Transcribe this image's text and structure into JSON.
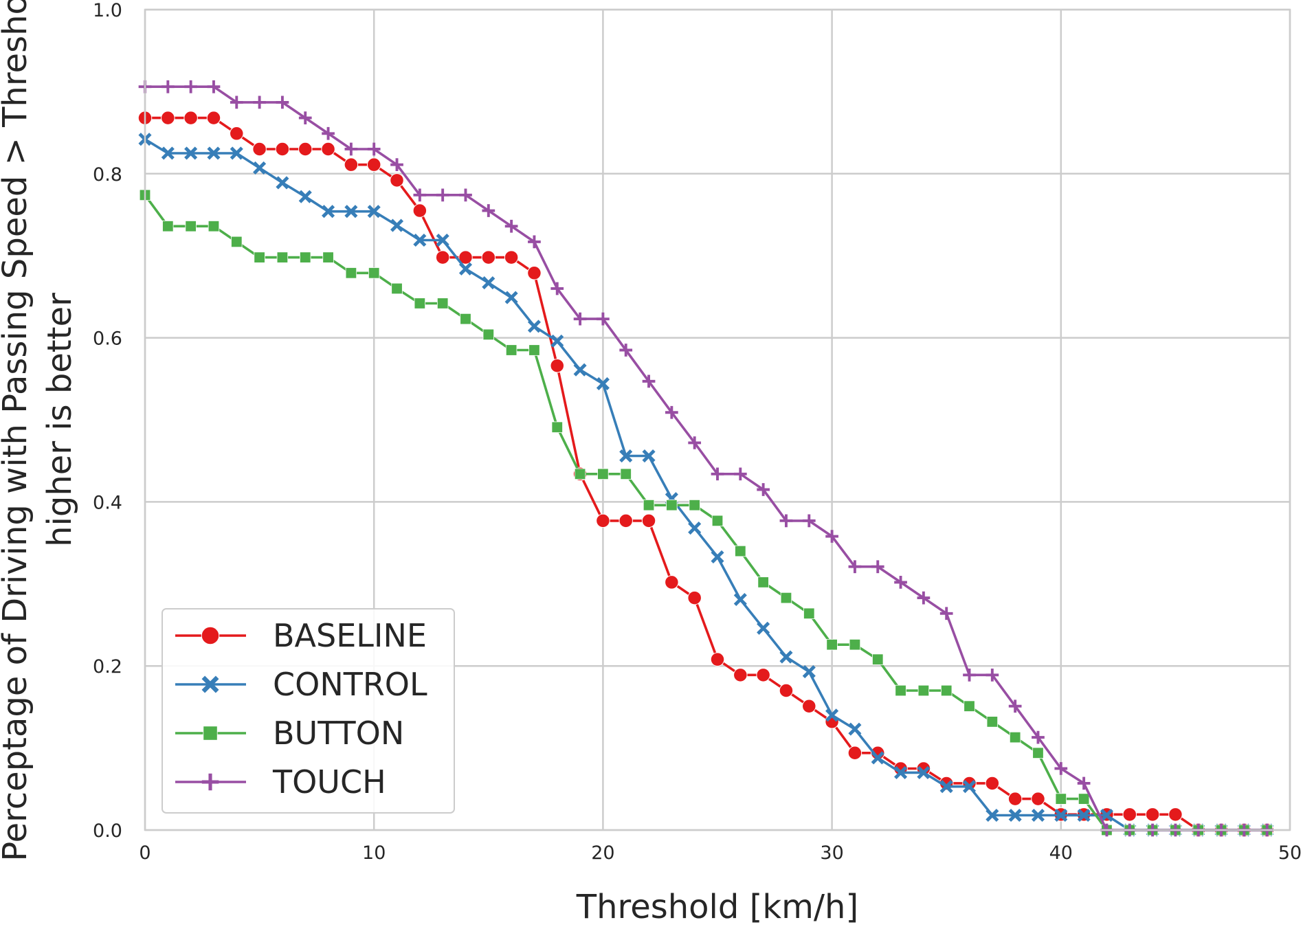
{
  "chart_data": {
    "type": "line",
    "title": "",
    "xlabel": "Threshold [km/h]",
    "ylabel": [
      "Perceptage of Driving with Passing Speed > Threshold",
      "higher is better"
    ],
    "xlim": [
      0,
      50
    ],
    "ylim": [
      0,
      1.0
    ],
    "x_ticks": [
      0,
      10,
      20,
      30,
      40,
      50
    ],
    "y_ticks": [
      0.0,
      0.2,
      0.4,
      0.6,
      0.8,
      1.0
    ],
    "x_tick_labels": [
      "0",
      "10",
      "20",
      "30",
      "40",
      "50"
    ],
    "y_tick_labels": [
      "0.0",
      "0.2",
      "0.4",
      "0.6",
      "0.8",
      "1.0"
    ],
    "grid": true,
    "legend_position": "lower-left",
    "series": [
      {
        "name": "BASELINE",
        "color": "#e41a1c",
        "marker": "circle",
        "x": [
          0,
          1,
          2,
          3,
          4,
          5,
          6,
          7,
          8,
          9,
          10,
          11,
          12,
          13,
          14,
          15,
          16,
          17,
          18,
          19,
          20,
          21,
          22,
          23,
          24,
          25,
          26,
          27,
          28,
          29,
          30,
          31,
          32,
          33,
          34,
          35,
          36,
          37,
          38,
          39,
          40,
          41,
          42,
          43,
          44,
          45,
          46,
          47,
          48,
          49
        ],
        "values": [
          0.868,
          0.868,
          0.868,
          0.868,
          0.849,
          0.83,
          0.83,
          0.83,
          0.83,
          0.811,
          0.811,
          0.792,
          0.755,
          0.698,
          0.698,
          0.698,
          0.698,
          0.679,
          0.566,
          0.434,
          0.377,
          0.377,
          0.377,
          0.302,
          0.283,
          0.208,
          0.189,
          0.189,
          0.17,
          0.151,
          0.132,
          0.094,
          0.094,
          0.075,
          0.075,
          0.057,
          0.057,
          0.057,
          0.038,
          0.038,
          0.019,
          0.019,
          0.019,
          0.019,
          0.019,
          0.019,
          0.0,
          0.0,
          0.0,
          0.0
        ]
      },
      {
        "name": "CONTROL",
        "color": "#377eb8",
        "marker": "x",
        "x": [
          0,
          1,
          2,
          3,
          4,
          5,
          6,
          7,
          8,
          9,
          10,
          11,
          12,
          13,
          14,
          15,
          16,
          17,
          18,
          19,
          20,
          21,
          22,
          23,
          24,
          25,
          26,
          27,
          28,
          29,
          30,
          31,
          32,
          33,
          34,
          35,
          36,
          37,
          38,
          39,
          40,
          41,
          42,
          43,
          44,
          45,
          46,
          47,
          48,
          49
        ],
        "values": [
          0.842,
          0.825,
          0.825,
          0.825,
          0.825,
          0.807,
          0.789,
          0.772,
          0.754,
          0.754,
          0.754,
          0.737,
          0.719,
          0.719,
          0.684,
          0.667,
          0.649,
          0.614,
          0.596,
          0.561,
          0.544,
          0.456,
          0.456,
          0.404,
          0.368,
          0.333,
          0.281,
          0.246,
          0.211,
          0.193,
          0.14,
          0.123,
          0.088,
          0.07,
          0.07,
          0.053,
          0.053,
          0.018,
          0.018,
          0.018,
          0.018,
          0.018,
          0.018,
          0.0,
          0.0,
          0.0,
          0.0,
          0.0,
          0.0,
          0.0
        ]
      },
      {
        "name": "BUTTON",
        "color": "#4daf4a",
        "marker": "square",
        "x": [
          0,
          1,
          2,
          3,
          4,
          5,
          6,
          7,
          8,
          9,
          10,
          11,
          12,
          13,
          14,
          15,
          16,
          17,
          18,
          19,
          20,
          21,
          22,
          23,
          24,
          25,
          26,
          27,
          28,
          29,
          30,
          31,
          32,
          33,
          34,
          35,
          36,
          37,
          38,
          39,
          40,
          41,
          42,
          43,
          44,
          45,
          46,
          47,
          48,
          49
        ],
        "values": [
          0.774,
          0.736,
          0.736,
          0.736,
          0.717,
          0.698,
          0.698,
          0.698,
          0.698,
          0.679,
          0.679,
          0.66,
          0.642,
          0.642,
          0.623,
          0.604,
          0.585,
          0.585,
          0.491,
          0.434,
          0.434,
          0.434,
          0.396,
          0.396,
          0.396,
          0.377,
          0.34,
          0.302,
          0.283,
          0.264,
          0.226,
          0.226,
          0.208,
          0.17,
          0.17,
          0.17,
          0.151,
          0.132,
          0.113,
          0.094,
          0.038,
          0.038,
          0.0,
          0.0,
          0.0,
          0.0,
          0.0,
          0.0,
          0.0,
          0.0
        ]
      },
      {
        "name": "TOUCH",
        "color": "#984ea3",
        "marker": "plus",
        "x": [
          0,
          1,
          2,
          3,
          4,
          5,
          6,
          7,
          8,
          9,
          10,
          11,
          12,
          13,
          14,
          15,
          16,
          17,
          18,
          19,
          20,
          21,
          22,
          23,
          24,
          25,
          26,
          27,
          28,
          29,
          30,
          31,
          32,
          33,
          34,
          35,
          36,
          37,
          38,
          39,
          40,
          41,
          42,
          43,
          44,
          45,
          46,
          47,
          48,
          49
        ],
        "values": [
          0.906,
          0.906,
          0.906,
          0.906,
          0.887,
          0.887,
          0.887,
          0.868,
          0.849,
          0.83,
          0.83,
          0.811,
          0.774,
          0.774,
          0.774,
          0.755,
          0.736,
          0.717,
          0.66,
          0.623,
          0.623,
          0.585,
          0.547,
          0.509,
          0.472,
          0.434,
          0.434,
          0.415,
          0.377,
          0.377,
          0.358,
          0.321,
          0.321,
          0.302,
          0.283,
          0.264,
          0.189,
          0.189,
          0.151,
          0.113,
          0.075,
          0.057,
          0.0,
          0.0,
          0.0,
          0.0,
          0.0,
          0.0,
          0.0,
          0.0
        ]
      }
    ]
  }
}
